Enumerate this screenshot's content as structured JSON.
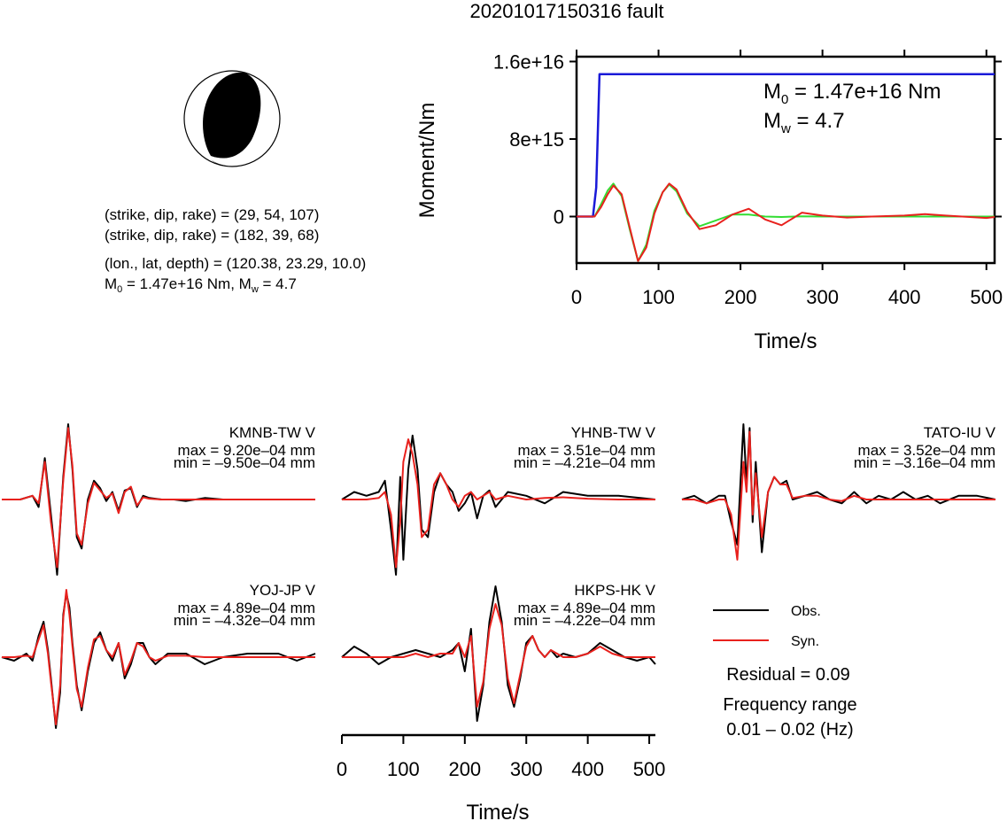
{
  "title": "20201017150316 fault",
  "colors": {
    "obs": "#000000",
    "syn": "#e8211d",
    "moment": "#1a1ad8",
    "stf": "#33dd33",
    "beachball": "#000000"
  },
  "focal": {
    "line1": "(strike, dip, rake) = (29, 54, 107)",
    "line2": "(strike, dip, rake) = (182, 39, 68)",
    "line3": "(lon., lat, depth) = (120.38, 23.29, 10.0)",
    "line4_prefix": "M",
    "line4_sub": "0",
    "line4_rest": " = 1.47e+16 Nm, M",
    "line4_sub2": "w",
    "line4_end": " = 4.7"
  },
  "moment_plot": {
    "ylabel": "Moment/Nm",
    "xlabel": "Time/s",
    "yticks": [
      "1.6e+16",
      "8e+15",
      "0"
    ],
    "xticks": [
      "0",
      "100",
      "200",
      "300",
      "400",
      "500"
    ],
    "m0_prefix": "M",
    "m0_sub": "0",
    "m0_rest": " = 1.47e+16 Nm",
    "mw_prefix": "M",
    "mw_sub": "w",
    "mw_rest": " = 4.7"
  },
  "chart_data": [
    {
      "type": "line",
      "title": "",
      "xlabel": "Time/s",
      "ylabel": "Moment/Nm",
      "xlim": [
        0,
        510
      ],
      "ylim": [
        -4800000000000000.0,
        1.65e+16
      ],
      "series": [
        {
          "x": [
            0,
            20,
            24,
            28,
            510
          ],
          "values": [
            0,
            0,
            3000000000000000.0,
            1.47e+16,
            1.47e+16
          ]
        },
        {
          "x": [
            0,
            22,
            30,
            38,
            45,
            55,
            65,
            75,
            85,
            95,
            105,
            113,
            122,
            135,
            150,
            170,
            190,
            210,
            230,
            250,
            275,
            300,
            330,
            360,
            400,
            450,
            510
          ],
          "values": [
            0,
            0,
            1300000000000000.0,
            2700000000000000.0,
            3400000000000000.0,
            2100000000000000.0,
            -1400000000000000.0,
            -4600000000000000.0,
            -2900000000000000.0,
            600000000000000.0,
            2500000000000000.0,
            3300000000000000.0,
            2600000000000000.0,
            300000000000000.0,
            -1000000000000000.0,
            -400000000000000.0,
            200000000000000.0,
            200000000000000.0,
            0.0,
            -50000000000000.0,
            20000000000000.0,
            0,
            0,
            0,
            0,
            0,
            0
          ]
        },
        {
          "x": [
            0,
            22,
            30,
            38,
            45,
            55,
            65,
            75,
            85,
            95,
            105,
            113,
            122,
            135,
            150,
            170,
            190,
            210,
            230,
            250,
            275,
            300,
            330,
            360,
            400,
            425,
            450,
            500,
            510
          ],
          "values": [
            0,
            0,
            1000000000000000.0,
            2300000000000000.0,
            3200000000000000.0,
            2300000000000000.0,
            -1200000000000000.0,
            -4600000000000000.0,
            -3200000000000000.0,
            300000000000000.0,
            2500000000000000.0,
            3400000000000000.0,
            2800000000000000.0,
            500000000000000.0,
            -1300000000000000.0,
            -900000000000000.0,
            200000000000000.0,
            800000000000000.0,
            -300000000000000.0,
            -900000000000000.0,
            400000000000000.0,
            100000000000000.0,
            -100000000000000.0,
            0,
            100000000000000.0,
            250000000000000.0,
            100000000000000.0,
            -150000000000000.0,
            -50000000000000.0
          ]
        }
      ]
    },
    {
      "type": "line",
      "xlabel": "Time/s",
      "xlim": [
        0,
        510
      ],
      "stations": [
        {
          "name": "KMNB-TW V",
          "max": "max = 9.20e–04 mm",
          "min": "min = –9.50e–04 mm",
          "obs": {
            "x": [
              0,
              30,
              50,
              60,
              70,
              80,
              90,
              100,
              108,
              115,
              122,
              130,
              140,
              150,
              160,
              170,
              180,
              190,
              200,
              210,
              220,
              230,
              240,
              260,
              280,
              300,
              330,
              360,
              400,
              450,
              510
            ],
            "values": [
              0,
              0,
              0.05,
              -0.1,
              0.55,
              -0.2,
              -1.0,
              0.3,
              1.0,
              0.4,
              -0.5,
              -0.65,
              0.0,
              0.25,
              0.15,
              -0.02,
              0.1,
              -0.15,
              0.12,
              0.15,
              -0.1,
              0.05,
              0.02,
              0,
              0,
              -0.02,
              0.02,
              0,
              0,
              0,
              0
            ]
          },
          "syn": {
            "x": [
              0,
              30,
              50,
              60,
              70,
              80,
              90,
              100,
              108,
              115,
              122,
              130,
              140,
              150,
              160,
              170,
              180,
              190,
              200,
              210,
              220,
              230,
              240,
              260,
              280,
              300,
              330,
              360,
              400,
              450,
              510
            ],
            "values": [
              0,
              0,
              0.05,
              -0.05,
              0.5,
              -0.3,
              -0.9,
              0.25,
              0.95,
              0.45,
              -0.45,
              -0.6,
              -0.05,
              0.22,
              0.12,
              0.02,
              0.08,
              -0.18,
              0.1,
              0.17,
              -0.08,
              0.03,
              0.01,
              0,
              0,
              0,
              0,
              0,
              0,
              0,
              0
            ]
          }
        },
        {
          "name": "YHNB-TW V",
          "max": "max = 3.51e–04 mm",
          "min": "min = –4.21e–04 mm",
          "obs": {
            "x": [
              0,
              20,
              40,
              60,
              70,
              80,
              88,
              95,
              100,
              108,
              115,
              123,
              130,
              140,
              150,
              160,
              170,
              180,
              190,
              200,
              210,
              220,
              230,
              240,
              250,
              270,
              300,
              330,
              360,
              400,
              450,
              510
            ],
            "values": [
              0,
              0.1,
              0.05,
              0.1,
              0.25,
              -0.4,
              -1.0,
              0.3,
              -0.8,
              0.4,
              0.85,
              0.4,
              -0.4,
              -0.5,
              0.1,
              0.35,
              0.2,
              0.1,
              -0.15,
              -0.05,
              0.1,
              -0.25,
              0.05,
              0.12,
              -0.1,
              0.1,
              0.05,
              -0.05,
              0.1,
              0.05,
              0.05,
              0
            ]
          },
          "syn": {
            "x": [
              0,
              20,
              40,
              60,
              70,
              80,
              88,
              95,
              100,
              108,
              115,
              123,
              130,
              140,
              150,
              160,
              170,
              180,
              190,
              200,
              210,
              220,
              230,
              240,
              250,
              270,
              300,
              330,
              360,
              400,
              450,
              510
            ],
            "values": [
              0,
              0,
              0,
              0.02,
              0.1,
              -0.2,
              -0.9,
              -0.3,
              0.5,
              0.8,
              0.6,
              0.2,
              -0.5,
              -0.4,
              0.2,
              0.35,
              0.2,
              0.0,
              -0.1,
              0.05,
              0.1,
              0.0,
              0.05,
              0.1,
              0.0,
              0.05,
              0,
              0.02,
              0.03,
              0.01,
              0,
              0
            ]
          }
        },
        {
          "name": "TATO-IU V",
          "max": "max = 3.52e–04 mm",
          "min": "min = –3.16e–04 mm",
          "obs": {
            "x": [
              0,
              20,
              40,
              60,
              70,
              80,
              90,
              100,
              105,
              110,
              115,
              120,
              130,
              140,
              150,
              160,
              170,
              180,
              200,
              220,
              240,
              260,
              280,
              300,
              320,
              340,
              360,
              380,
              400,
              420,
              450,
              480,
              510
            ],
            "values": [
              0,
              0.05,
              -0.05,
              0.05,
              0.05,
              -0.3,
              -0.6,
              1.0,
              0.2,
              0.95,
              -0.3,
              0.5,
              -0.7,
              0.1,
              0.3,
              0.2,
              0.25,
              0.0,
              0.05,
              0.1,
              0.0,
              -0.05,
              0.1,
              -0.05,
              0.05,
              0.0,
              0.1,
              0,
              0.05,
              -0.05,
              0.05,
              0.05,
              0
            ]
          },
          "syn": {
            "x": [
              0,
              20,
              40,
              60,
              70,
              80,
              90,
              100,
              105,
              110,
              115,
              120,
              130,
              140,
              150,
              160,
              170,
              180,
              200,
              220,
              240,
              260,
              280,
              300,
              320,
              340,
              360,
              380,
              400,
              420,
              450,
              480,
              510
            ],
            "values": [
              0,
              0,
              -0.05,
              0,
              0,
              -0.2,
              -0.8,
              0.5,
              0.1,
              0.9,
              -0.2,
              0.35,
              -0.5,
              0.1,
              0.3,
              0.2,
              0.2,
              0.02,
              0.05,
              0.05,
              0.0,
              -0.02,
              0.05,
              0,
              0,
              0,
              0,
              0,
              0,
              0,
              0,
              0,
              0
            ]
          }
        },
        {
          "name": "YOJ-JP V",
          "max": "max = 4.89e–04 mm",
          "min": "min = –4.32e–04 mm",
          "obs": {
            "x": [
              0,
              20,
              40,
              50,
              60,
              68,
              75,
              80,
              88,
              95,
              100,
              105,
              110,
              115,
              122,
              130,
              140,
              150,
              160,
              170,
              180,
              190,
              200,
              210,
              220,
              230,
              240,
              250,
              270,
              300,
              330,
              360,
              400,
              450,
              480,
              510
            ],
            "values": [
              0,
              -0.05,
              0.05,
              -0.05,
              0.3,
              0.5,
              0.1,
              -0.3,
              -1.0,
              -0.5,
              0.6,
              0.9,
              0.7,
              0.2,
              -0.4,
              -0.75,
              -0.2,
              0.2,
              0.35,
              0.1,
              -0.05,
              0.2,
              -0.3,
              -0.1,
              0.2,
              0.2,
              0.0,
              -0.1,
              0.05,
              0.05,
              -0.1,
              0.0,
              0.05,
              0.05,
              -0.05,
              0.05
            ]
          },
          "syn": {
            "x": [
              0,
              20,
              40,
              50,
              60,
              68,
              75,
              80,
              88,
              95,
              100,
              105,
              110,
              115,
              122,
              130,
              140,
              150,
              160,
              170,
              180,
              190,
              200,
              210,
              220,
              230,
              240,
              250,
              270,
              300,
              330,
              360,
              400,
              450,
              480,
              510
            ],
            "values": [
              0,
              0,
              0.02,
              0.0,
              0.25,
              0.45,
              0.05,
              -0.35,
              -0.95,
              -0.4,
              0.55,
              0.95,
              0.6,
              0.15,
              -0.45,
              -0.7,
              -0.15,
              0.25,
              0.3,
              0.1,
              0.0,
              0.2,
              -0.25,
              -0.05,
              0.2,
              0.15,
              0.0,
              -0.05,
              0.02,
              0.02,
              0,
              0,
              0,
              0,
              0,
              0
            ]
          }
        },
        {
          "name": "HKPS-HK V",
          "max": "max = 4.89e–04 mm",
          "min": "min = –4.22e–04 mm",
          "obs": {
            "x": [
              0,
              20,
              40,
              60,
              80,
              100,
              120,
              140,
              160,
              180,
              190,
              200,
              210,
              220,
              230,
              240,
              250,
              260,
              270,
              280,
              290,
              300,
              310,
              320,
              330,
              340,
              350,
              360,
              380,
              400,
              420,
              440,
              460,
              480,
              500,
              510
            ],
            "values": [
              0,
              0.15,
              0.05,
              -0.1,
              0.0,
              0.05,
              0.1,
              0.05,
              0.0,
              0.1,
              0.2,
              -0.2,
              0.4,
              -0.9,
              -0.4,
              0.5,
              1.0,
              0.5,
              -0.4,
              -0.7,
              -0.3,
              0.2,
              0.3,
              0.1,
              0.0,
              0.1,
              0.0,
              0.05,
              0.0,
              0.05,
              0.2,
              0.1,
              0.0,
              -0.05,
              0.0,
              -0.1
            ]
          },
          "syn": {
            "x": [
              0,
              20,
              40,
              60,
              80,
              100,
              120,
              140,
              160,
              180,
              190,
              200,
              210,
              220,
              230,
              240,
              250,
              260,
              270,
              280,
              290,
              300,
              310,
              320,
              330,
              340,
              350,
              360,
              380,
              400,
              420,
              440,
              460,
              480,
              500,
              510
            ],
            "values": [
              0,
              0,
              0,
              0,
              0,
              0,
              0.05,
              0.0,
              0.05,
              0.05,
              0.2,
              0.0,
              0.3,
              -0.7,
              -0.35,
              0.4,
              0.75,
              0.45,
              -0.3,
              -0.65,
              -0.25,
              0.15,
              0.3,
              0.1,
              0.0,
              0.1,
              0.05,
              0.0,
              0.0,
              0.05,
              0.15,
              0.05,
              0.0,
              0.0,
              0.0,
              0.0
            ]
          }
        }
      ]
    }
  ],
  "waveform_axis": {
    "xticks": [
      "0",
      "100",
      "200",
      "300",
      "400",
      "500"
    ],
    "xlabel": "Time/s"
  },
  "legend": {
    "obs": "Obs.",
    "syn": "Syn."
  },
  "residual": "Residual = 0.09",
  "freq_label": "Frequency range",
  "freq_value": "0.01 – 0.02 (Hz)"
}
